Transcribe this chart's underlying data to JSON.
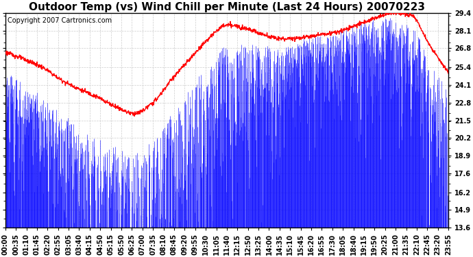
{
  "title": "Outdoor Temp (vs) Wind Chill per Minute (Last 24 Hours) 20070223",
  "copyright_text": "Copyright 2007 Cartronics.com",
  "y_ticks": [
    13.6,
    14.9,
    16.2,
    17.6,
    18.9,
    20.2,
    21.5,
    22.8,
    24.1,
    25.4,
    26.8,
    28.1,
    29.4
  ],
  "y_min": 13.6,
  "y_max": 29.4,
  "background_color": "#ffffff",
  "plot_bg_color": "#ffffff",
  "grid_color": "#cccccc",
  "bar_color": "#0000ff",
  "line_color": "#ff0000",
  "title_fontsize": 11,
  "copyright_fontsize": 7,
  "tick_label_fontsize": 7,
  "x_tick_labels": [
    "00:00",
    "00:35",
    "01:10",
    "01:45",
    "02:20",
    "02:55",
    "03:05",
    "03:40",
    "04:15",
    "04:50",
    "05:15",
    "05:50",
    "06:25",
    "07:00",
    "07:35",
    "08:10",
    "08:45",
    "09:20",
    "09:55",
    "10:30",
    "11:05",
    "11:40",
    "12:15",
    "12:50",
    "13:25",
    "14:00",
    "14:35",
    "15:10",
    "15:45",
    "16:20",
    "16:55",
    "17:30",
    "18:05",
    "18:40",
    "19:15",
    "19:50",
    "20:25",
    "21:00",
    "21:35",
    "22:10",
    "22:45",
    "23:20",
    "23:55"
  ]
}
